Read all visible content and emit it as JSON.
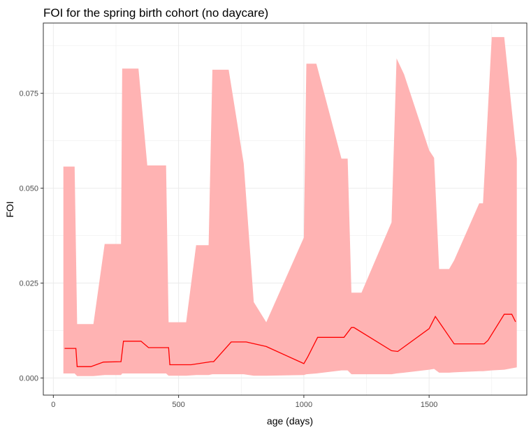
{
  "chart_data": {
    "type": "area",
    "title": "FOI for the spring birth cohort (no daycare)",
    "xlabel": "age (days)",
    "ylabel": "FOI",
    "xlim": [
      -40,
      1890
    ],
    "ylim": [
      -0.0045,
      0.0935
    ],
    "x_ticks": [
      0,
      500,
      1000,
      1500
    ],
    "x_tick_labels": [
      "0",
      "500",
      "1000",
      "1500"
    ],
    "y_ticks": [
      0.0,
      0.025,
      0.05,
      0.075
    ],
    "y_tick_labels": [
      "0.000",
      "0.025",
      "0.050",
      "0.075"
    ],
    "grid": true,
    "legend": "none",
    "colors": {
      "ribbon": "#ffb3b3",
      "line": "#ff0000",
      "grid": "#ebebeb",
      "panel_border": "#333333"
    },
    "series": [
      {
        "kind": "line",
        "x": [
          45,
          90,
          95,
          150,
          200,
          270,
          280,
          350,
          380,
          460,
          465,
          550,
          630,
          640,
          710,
          770,
          850,
          1000,
          1015,
          1055,
          1160,
          1190,
          1200,
          1350,
          1375,
          1500,
          1525,
          1600,
          1720,
          1735,
          1800,
          1830,
          1845
        ],
        "y": [
          0.0078,
          0.0078,
          0.003,
          0.003,
          0.0042,
          0.0043,
          0.0097,
          0.0097,
          0.008,
          0.008,
          0.0035,
          0.0035,
          0.0043,
          0.0043,
          0.0095,
          0.0095,
          0.0083,
          0.0038,
          0.0055,
          0.0107,
          0.0107,
          0.0133,
          0.0133,
          0.0072,
          0.007,
          0.013,
          0.0162,
          0.009,
          0.009,
          0.0099,
          0.0168,
          0.0168,
          0.0148
        ]
      },
      {
        "kind": "ribbon",
        "x": [
          40,
          85,
          95,
          160,
          205,
          270,
          275,
          340,
          375,
          450,
          460,
          530,
          570,
          620,
          635,
          700,
          760,
          800,
          850,
          1000,
          1010,
          1050,
          1150,
          1175,
          1190,
          1230,
          1350,
          1370,
          1400,
          1500,
          1520,
          1540,
          1580,
          1600,
          1700,
          1715,
          1750,
          1800,
          1850
        ],
        "upper": [
          0.0557,
          0.0557,
          0.0142,
          0.0142,
          0.0353,
          0.0353,
          0.0815,
          0.0815,
          0.056,
          0.056,
          0.0147,
          0.0147,
          0.035,
          0.035,
          0.0812,
          0.0812,
          0.0565,
          0.02,
          0.0147,
          0.037,
          0.0828,
          0.0828,
          0.0578,
          0.0578,
          0.0225,
          0.0225,
          0.041,
          0.0842,
          0.08,
          0.06,
          0.058,
          0.0287,
          0.0287,
          0.031,
          0.046,
          0.046,
          0.0898,
          0.0898,
          0.0578
        ],
        "lower": [
          0.0012,
          0.0012,
          0.0005,
          0.0005,
          0.0008,
          0.0008,
          0.0012,
          0.0012,
          0.0012,
          0.0012,
          0.0006,
          0.0006,
          0.0008,
          0.0008,
          0.001,
          0.001,
          0.001,
          0.0006,
          0.0006,
          0.0008,
          0.001,
          0.0012,
          0.002,
          0.002,
          0.001,
          0.001,
          0.001,
          0.0012,
          0.0014,
          0.0022,
          0.0024,
          0.0014,
          0.0014,
          0.0015,
          0.0018,
          0.0018,
          0.002,
          0.0022,
          0.0028
        ]
      }
    ]
  }
}
